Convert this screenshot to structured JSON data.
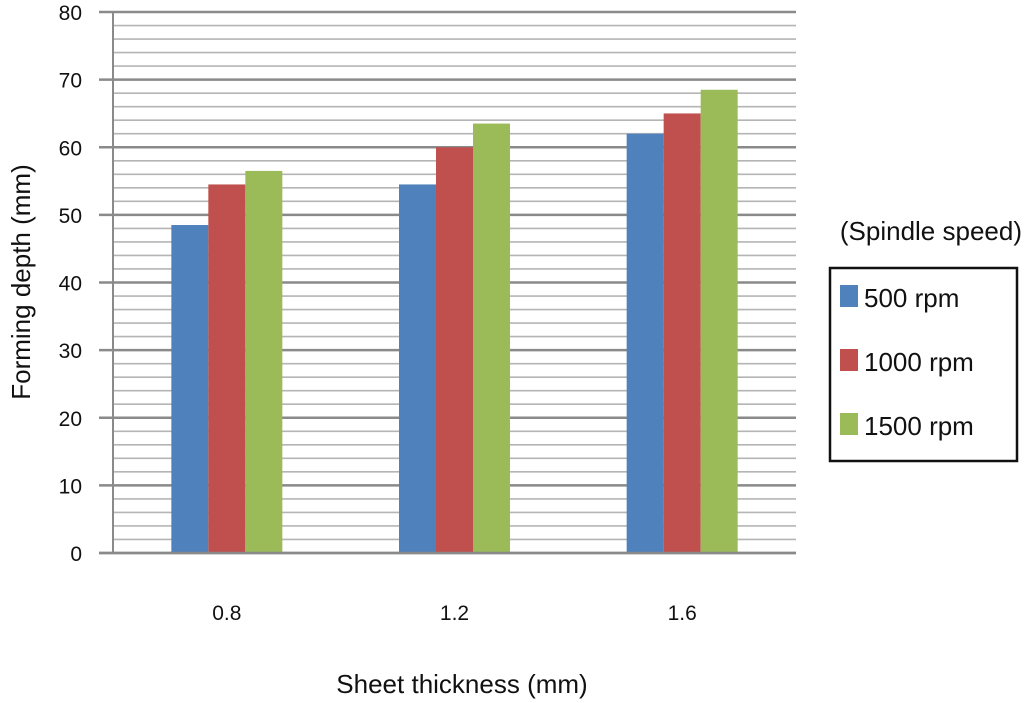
{
  "chart_data": {
    "type": "bar",
    "title": "",
    "xlabel": "Sheet thickness (mm)",
    "ylabel": "Forming depth (mm)",
    "categories": [
      "0.8",
      "1.2",
      "1.6"
    ],
    "ylim": [
      0,
      80
    ],
    "yticks": [
      0,
      10,
      20,
      30,
      40,
      50,
      60,
      70,
      80
    ],
    "minor_grid_step": 2,
    "grid": true,
    "legend_title": "(Spindle speed)",
    "legend_position": "right",
    "series": [
      {
        "name": "500 rpm",
        "color": "#4f81bd",
        "values": [
          48.5,
          54.5,
          62
        ]
      },
      {
        "name": "1000 rpm",
        "color": "#c0504d",
        "values": [
          54.5,
          60,
          65
        ]
      },
      {
        "name": "1500 rpm",
        "color": "#9bbb59",
        "values": [
          56.5,
          63.5,
          68.5
        ]
      }
    ]
  }
}
